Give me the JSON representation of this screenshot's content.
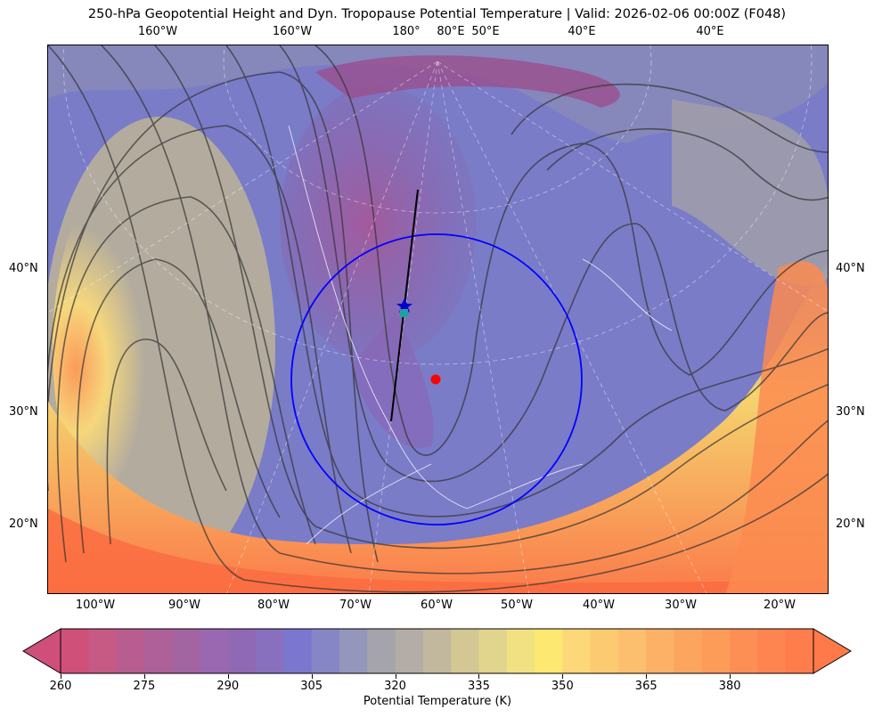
{
  "title": "250-hPa Geopotential Height and Dyn. Tropopause Potential Temperature   |  Valid: 2026-02-06 00:00Z (F048)",
  "top_lon_labels": [
    "160°W",
    "160°W",
    "180°",
    "80°E",
    "50°E",
    "40°E",
    "40°E"
  ],
  "bottom_lon_labels": [
    "100°W",
    "90°W",
    "80°W",
    "70°W",
    "60°W",
    "50°W",
    "40°W",
    "30°W",
    "20°W"
  ],
  "left_lat_labels": [
    "40°N",
    "30°N",
    "20°N"
  ],
  "right_lat_labels": [
    "40°N",
    "30°N",
    "20°N"
  ],
  "colorbar": {
    "label": "Potential Temperature (K)",
    "tick_labels": [
      "260",
      "275",
      "290",
      "305",
      "320",
      "335",
      "350",
      "365",
      "380"
    ],
    "min": 260,
    "max": 395,
    "step": 5,
    "colors": [
      "#cf5079",
      "#c65a84",
      "#b95d90",
      "#ad6198",
      "#a365a2",
      "#9a68b0",
      "#9069b5",
      "#8870bf",
      "#7b77cf",
      "#8686c6",
      "#9596bb",
      "#a5a3ab",
      "#b4aca6",
      "#c2b89e",
      "#d3c794",
      "#e1d48c",
      "#f1e183",
      "#fde871",
      "#fdd878",
      "#fcca70",
      "#fcbf6d",
      "#fcb166",
      "#fca55e",
      "#fd9c58",
      "#fd8f54",
      "#fe8450",
      "#ff7d4b"
    ],
    "extend_low_color": "#d04f7a",
    "extend_high_color": "#ff7a48"
  },
  "markers": {
    "circle_color": "#0000ff",
    "star_color": "#0000cc",
    "square_color": "#20a0a0",
    "dot_color": "#ff0000",
    "line_color": "#000000"
  }
}
